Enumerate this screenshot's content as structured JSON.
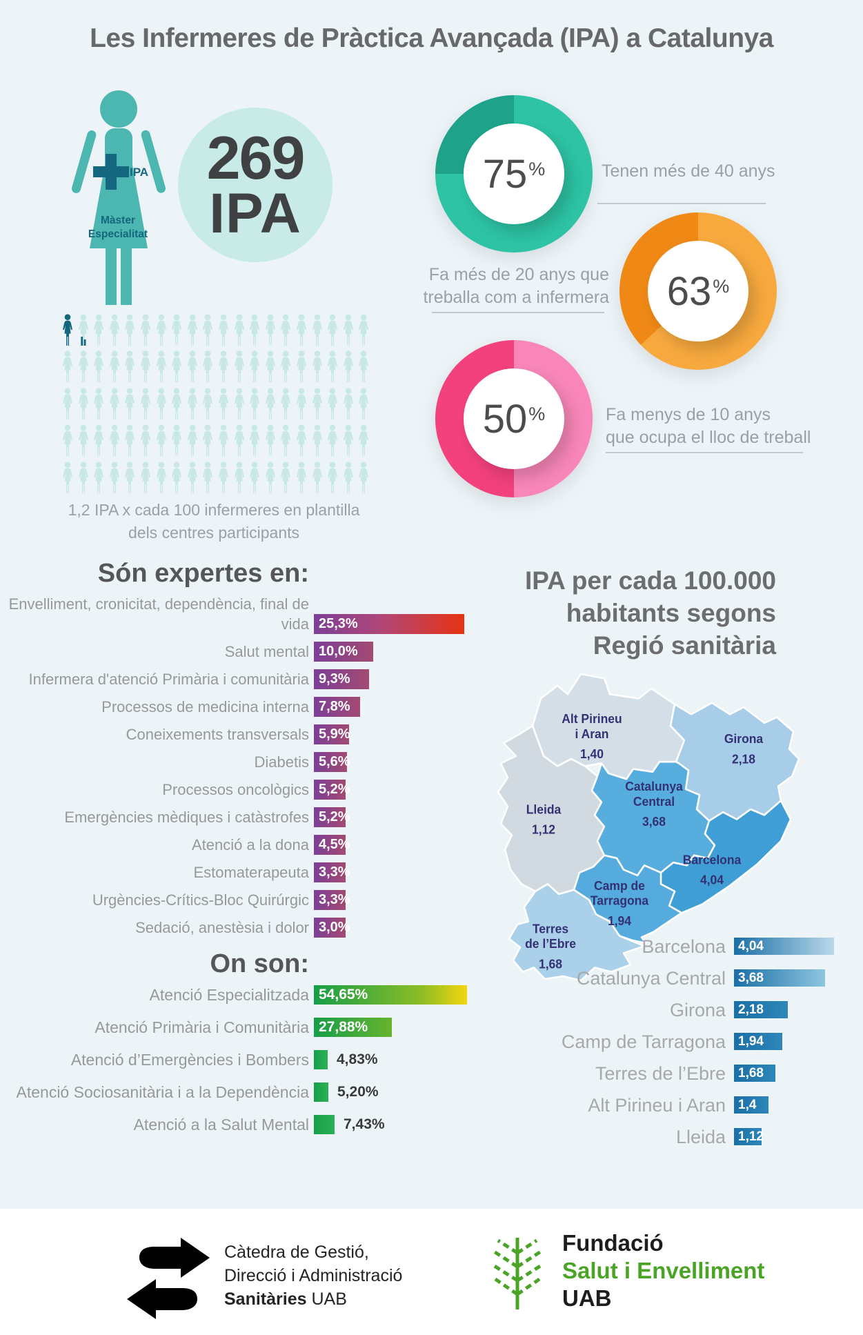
{
  "title": "Les Infermeres de Pràctica Avançada (IPA) a Catalunya",
  "hero": {
    "cross_label": "IPA",
    "badge_line1": "Màster",
    "badge_line2": "Especialitat",
    "count": "269",
    "unit": "IPA",
    "figure_color": "#4cb6b1",
    "dark_teal": "#14677e",
    "circle_color": "#c9ebe7"
  },
  "donuts": [
    {
      "value_label": "75",
      "pct": 75,
      "label_lines": [
        "Tenen més de 40 anys"
      ],
      "color_main": "#2dc3a4",
      "color_dark": "#1ea28a"
    },
    {
      "value_label": "63",
      "pct": 63,
      "label_lines": [
        "Fa més de 20 anys que",
        "treballa com a infermera"
      ],
      "color_main": "#f7a93e",
      "color_dark": "#ef8815"
    },
    {
      "value_label": "50",
      "pct": 50,
      "label_lines": [
        "Fa menys de 10 anys",
        "que ocupa el lloc de treball"
      ],
      "color_main": "#f886b8",
      "color_dark": "#f2417c"
    }
  ],
  "pictogram": {
    "caption_line1": "1,2 IPA x cada 100 infermeres en plantilla",
    "caption_line2": "dels centres participants",
    "rows": 5,
    "cols": 20,
    "color_light": "#c7e8e4",
    "color_dark": "#14677e"
  },
  "expertes": {
    "heading": "Són expertes en:",
    "items": [
      {
        "label": "Envelliment, cronicitat, dependència, final de vida",
        "value": 25.3,
        "value_label": "25,3%"
      },
      {
        "label": "Salut mental",
        "value": 10.0,
        "value_label": "10,0%"
      },
      {
        "label": "Infermera d'atenció Primària i comunitària",
        "value": 9.3,
        "value_label": "9,3%"
      },
      {
        "label": "Processos de medicina interna",
        "value": 7.8,
        "value_label": "7,8%"
      },
      {
        "label": "Coneixements transversals",
        "value": 5.9,
        "value_label": "5,9%"
      },
      {
        "label": "Diabetis",
        "value": 5.6,
        "value_label": "5,6%"
      },
      {
        "label": "Processos oncològics",
        "value": 5.2,
        "value_label": "5,2%"
      },
      {
        "label": "Emergències mèdiques i catàstrofes",
        "value": 5.2,
        "value_label": "5,2%"
      },
      {
        "label": "Atenció a la dona",
        "value": 4.5,
        "value_label": "4,5%"
      },
      {
        "label": "Estomaterapeuta",
        "value": 3.3,
        "value_label": "3,3%"
      },
      {
        "label": "Urgències-Crítics-Bloc Quirúrgic",
        "value": 3.3,
        "value_label": "3,3%"
      },
      {
        "label": "Sedació, anestèsia i dolor",
        "value": 3.0,
        "value_label": "3,0%"
      }
    ]
  },
  "onson": {
    "heading": "On son:",
    "items": [
      {
        "label": "Atenció Especialitzada",
        "value": 54.65,
        "value_label": "54,65%"
      },
      {
        "label": "Atenció Primària i Comunitària",
        "value": 27.88,
        "value_label": "27,88%"
      },
      {
        "label": "Atenció d’Emergències i Bombers",
        "value": 4.83,
        "value_label": "4,83%"
      },
      {
        "label": "Atenció Sociosanitària i a la Dependència",
        "value": 5.2,
        "value_label": "5,20%"
      },
      {
        "label": "Atenció a la Salut Mental",
        "value": 7.43,
        "value_label": "7,43%"
      }
    ]
  },
  "map": {
    "heading_line1": "IPA per cada 100.000",
    "heading_line2": "habitants segons",
    "heading_line3": "Regió sanitària",
    "label_color": "#333173",
    "regions": [
      {
        "key": "alt-pirineu-i-aran",
        "lines": [
          "Alt Pirineu",
          "i Aran"
        ],
        "value_label": "1,40",
        "color": "#d4dee6"
      },
      {
        "key": "girona",
        "lines": [
          "Girona"
        ],
        "value_label": "2,18",
        "color": "#a7cde8"
      },
      {
        "key": "catalunya-central",
        "lines": [
          "Catalunya",
          "Central"
        ],
        "value_label": "3,68",
        "color": "#57aede"
      },
      {
        "key": "lleida",
        "lines": [
          "Lleida"
        ],
        "value_label": "1,12",
        "color": "#d2dae1"
      },
      {
        "key": "barcelona",
        "lines": [
          "Barcelona"
        ],
        "value_label": "4,04",
        "color": "#3f9ed6"
      },
      {
        "key": "camp-de-tarragona",
        "lines": [
          "Camp de",
          "Tarragona"
        ],
        "value_label": "1,94",
        "color": "#55abde"
      },
      {
        "key": "terres-de-l-ebre",
        "lines": [
          "Terres",
          "de l’Ebre"
        ],
        "value_label": "1,68",
        "color": "#abd0ea"
      }
    ]
  },
  "region_bars": {
    "items": [
      {
        "label": "Barcelona",
        "value": 4.04,
        "value_label": "4,04"
      },
      {
        "label": "Catalunya Central",
        "value": 3.68,
        "value_label": "3,68"
      },
      {
        "label": "Girona",
        "value": 2.18,
        "value_label": "2,18"
      },
      {
        "label": "Camp de Tarragona",
        "value": 1.94,
        "value_label": "1,94"
      },
      {
        "label": "Terres de l’Ebre",
        "value": 1.68,
        "value_label": "1,68"
      },
      {
        "label": "Alt Pirineu i Aran",
        "value": 1.4,
        "value_label": "1,4"
      },
      {
        "label": "Lleida",
        "value": 1.12,
        "value_label": "1,12"
      }
    ]
  },
  "footer": {
    "catedra_line1": "Càtedra de Gestió,",
    "catedra_line2": "Direcció i Administració",
    "catedra_bold": "Sanitàries",
    "catedra_suffix": " UAB",
    "fundacio_line1": "Fundació",
    "fundacio_line2": "Salut i Envelliment",
    "fundacio_line3": "UAB"
  },
  "colors": {
    "background": "#edf4f8",
    "purple_start": "#7c3f98",
    "purple_end": "#a34a71",
    "red_end": "#e63312",
    "green_start": "#169e48",
    "yellow_end": "#f3d60e",
    "lightgreen_end": "#66b42e",
    "blue_bar_start": "#1a6fa7",
    "blue_bar_light_end": "#b9d9ea"
  },
  "chart_data": [
    {
      "type": "pie",
      "title": "Tenen més de 40 anys",
      "values": [
        75,
        25
      ],
      "labels": [
        "Tenen més de 40 anys",
        "resta"
      ]
    },
    {
      "type": "pie",
      "title": "Fa més de 20 anys que treballa com a infermera",
      "values": [
        63,
        37
      ],
      "labels": [
        "Fa més de 20 anys que treballa com a infermera",
        "resta"
      ]
    },
    {
      "type": "pie",
      "title": "Fa menys de 10 anys que ocupa el lloc de treball",
      "values": [
        50,
        50
      ],
      "labels": [
        "Fa menys de 10 anys que ocupa el lloc de treball",
        "resta"
      ]
    },
    {
      "type": "bar",
      "title": "1,2 IPA x cada 100 infermeres en plantilla dels centres participants",
      "categories": [
        "IPA"
      ],
      "values": [
        1.2
      ]
    },
    {
      "type": "bar",
      "title": "Són expertes en:",
      "categories": [
        "Envelliment, cronicitat, dependència, final de vida",
        "Salut mental",
        "Infermera d'atenció Primària i comunitària",
        "Processos de medicina interna",
        "Coneixements transversals",
        "Diabetis",
        "Processos oncològics",
        "Emergències mèdiques i catàstrofes",
        "Atenció a la dona",
        "Estomaterapeuta",
        "Urgències-Crítics-Bloc Quirúrgic",
        "Sedació, anestèsia i dolor"
      ],
      "values": [
        25.3,
        10.0,
        9.3,
        7.8,
        5.9,
        5.6,
        5.2,
        5.2,
        4.5,
        3.3,
        3.3,
        3.0
      ]
    },
    {
      "type": "bar",
      "title": "On son:",
      "categories": [
        "Atenció Especialitzada",
        "Atenció Primària i Comunitària",
        "Atenció d’Emergències i Bombers",
        "Atenció Sociosanitària i a la Dependència",
        "Atenció a la Salut Mental"
      ],
      "values": [
        54.65,
        27.88,
        4.83,
        5.2,
        7.43
      ]
    },
    {
      "type": "bar",
      "title": "IPA per cada 100.000 habitants segons Regió sanitària",
      "categories": [
        "Barcelona",
        "Catalunya Central",
        "Girona",
        "Camp de Tarragona",
        "Terres de l’Ebre",
        "Alt Pirineu i Aran",
        "Lleida"
      ],
      "values": [
        4.04,
        3.68,
        2.18,
        1.94,
        1.68,
        1.4,
        1.12
      ]
    }
  ]
}
